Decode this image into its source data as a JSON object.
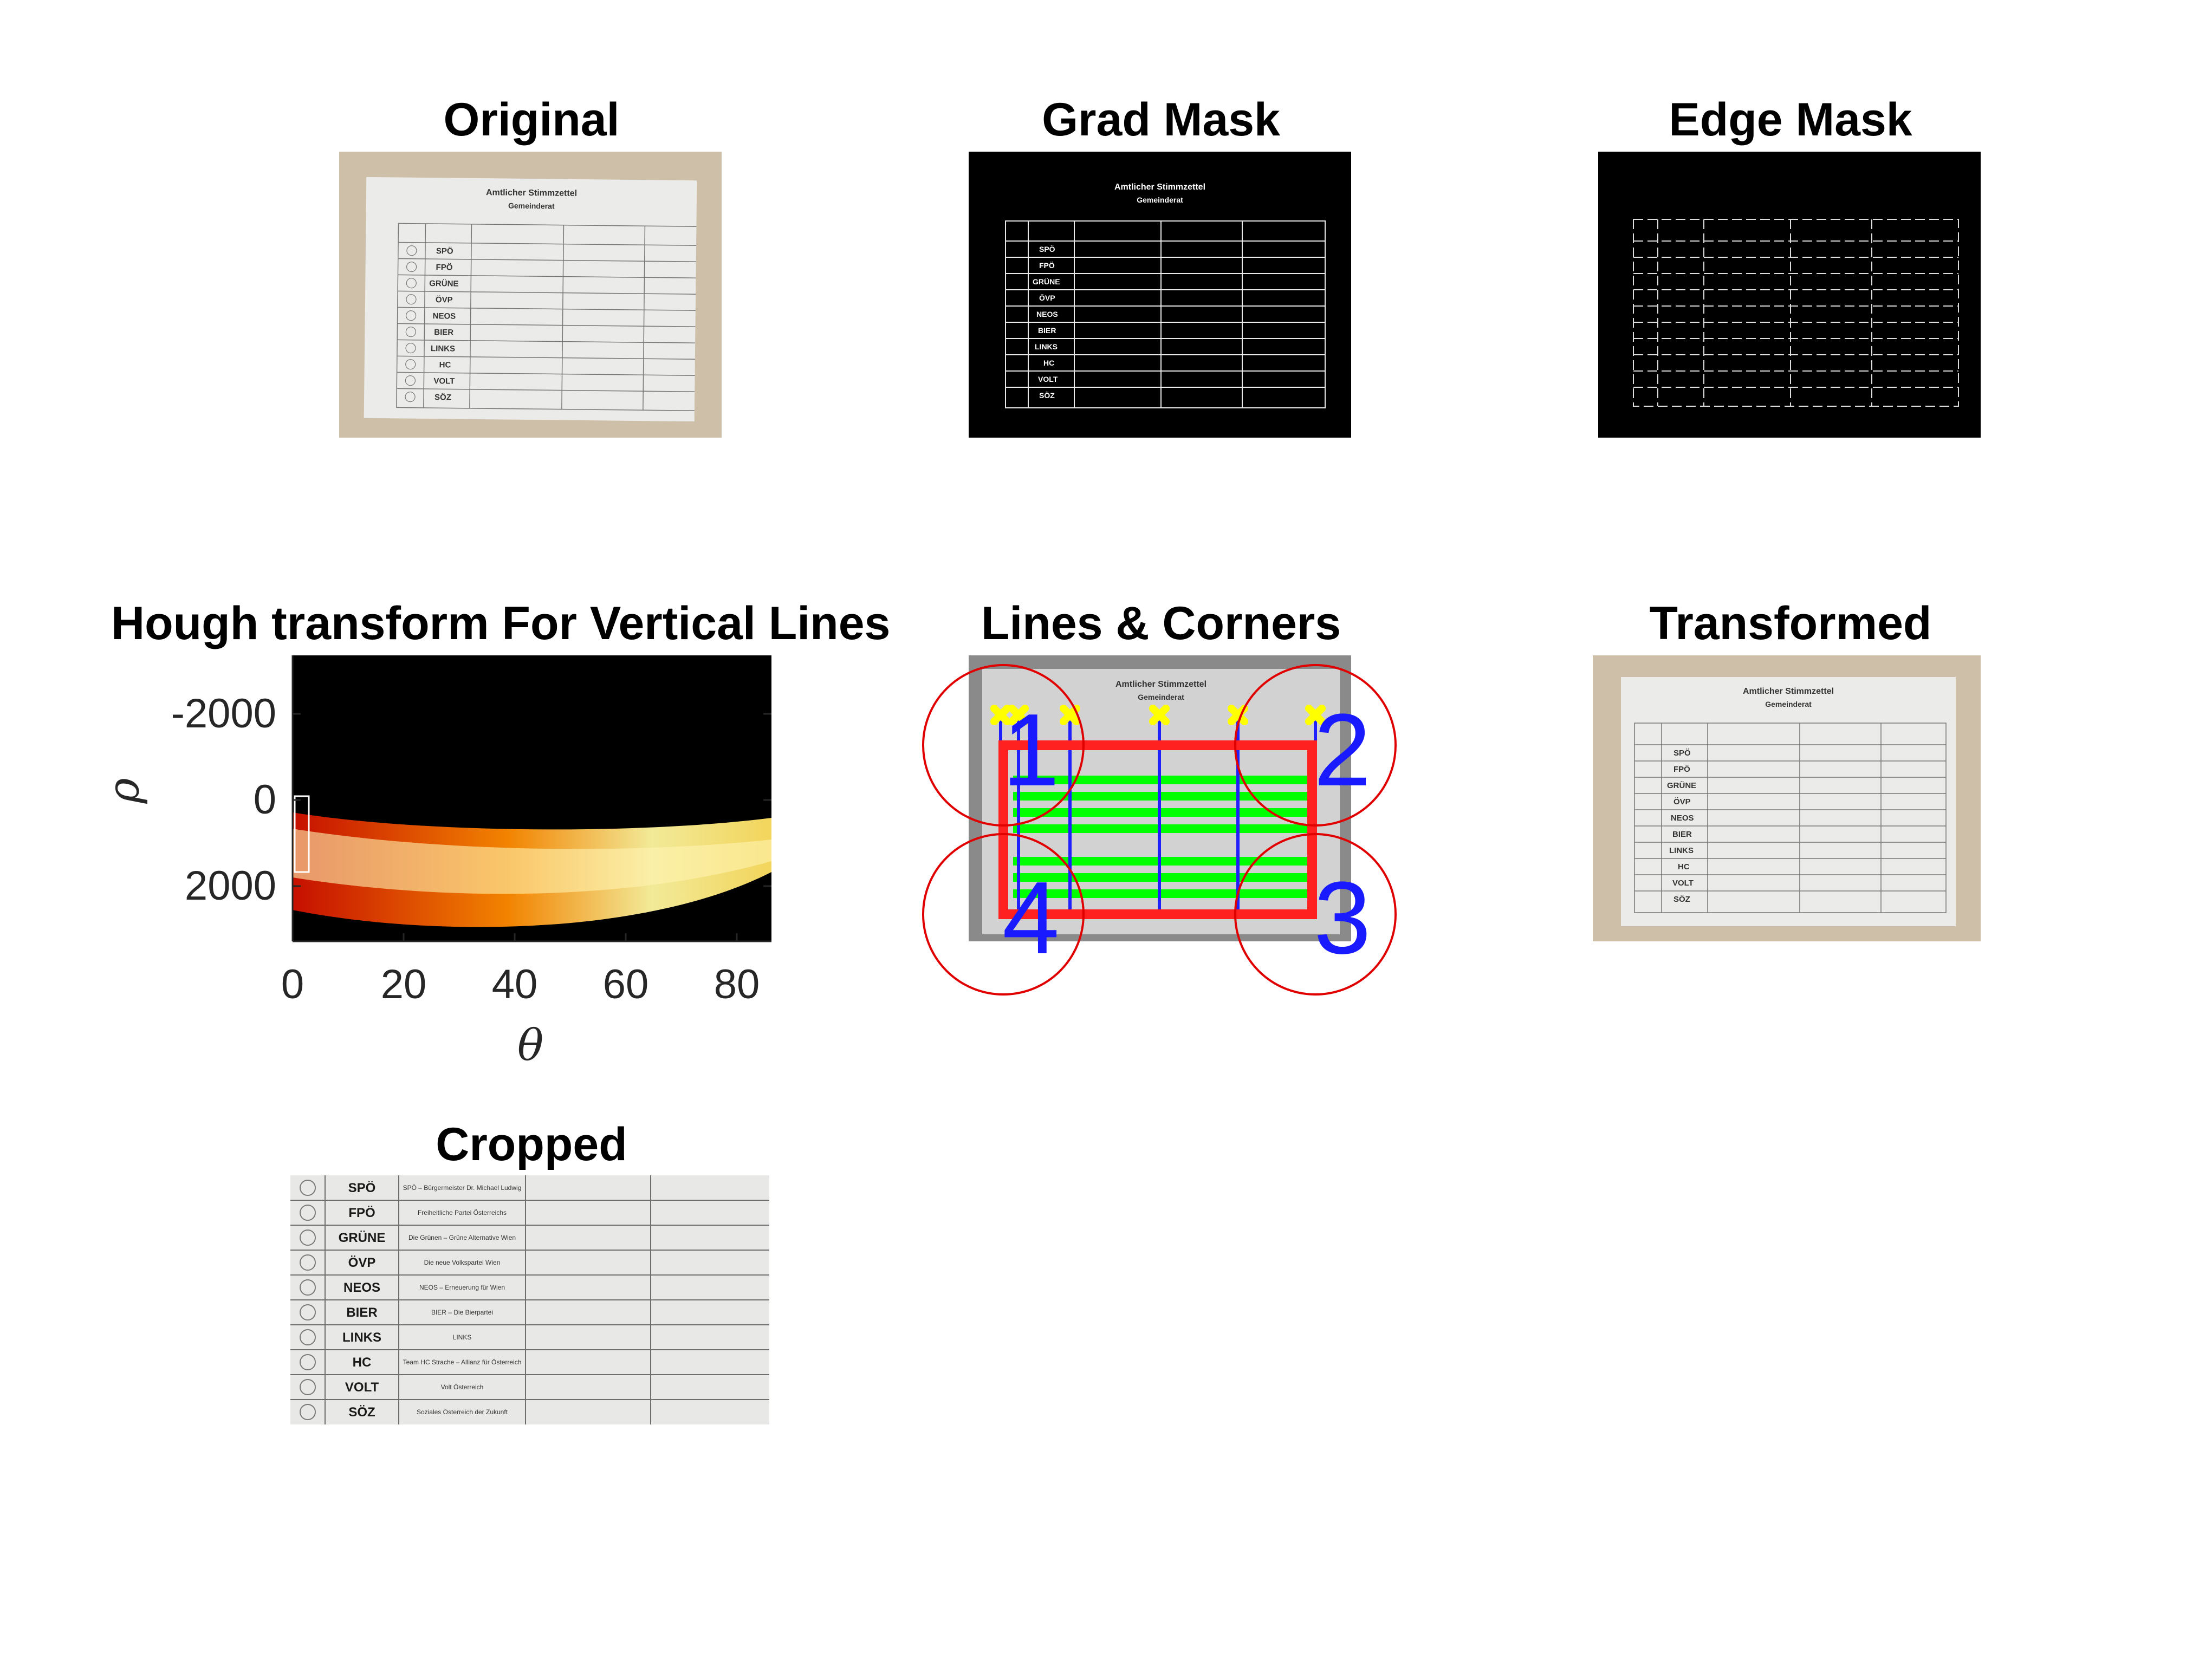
{
  "panels": {
    "original": {
      "title": "Original"
    },
    "grad_mask": {
      "title": "Grad Mask"
    },
    "edge_mask": {
      "title": "Edge Mask"
    },
    "hough": {
      "title": "Hough transform For Vertical Lines"
    },
    "lines_corners": {
      "title": "Lines & Corners"
    },
    "transformed": {
      "title": "Transformed"
    },
    "cropped": {
      "title": "Cropped"
    }
  },
  "ballot": {
    "heading": "Amtlicher Stimmzettel",
    "subheading": "Gemeinderat",
    "parties": [
      "SPÖ",
      "FPÖ",
      "GRÜNE",
      "ÖVP",
      "NEOS",
      "BIER",
      "LINKS",
      "HC",
      "VOLT",
      "SÖZ"
    ],
    "descriptions": [
      "SPÖ – Bürgermeister Dr. Michael Ludwig",
      "Freiheitliche Partei Österreichs",
      "Die Grünen – Grüne Alternative Wien",
      "Die neue Volkspartei Wien",
      "NEOS – Erneuerung für Wien",
      "BIER – Die Bierpartei",
      "LINKS",
      "Team HC Strache – Allianz für Österreich",
      "Volt Österreich",
      "Soziales Österreich der Zukunft"
    ]
  },
  "hough_axes": {
    "xlabel": "θ",
    "ylabel": "ρ",
    "xticks": [
      "0",
      "20",
      "40",
      "60",
      "80"
    ],
    "yticks": [
      "-2000",
      "0",
      "2000"
    ]
  },
  "corners": {
    "labels": [
      "1",
      "2",
      "3",
      "4"
    ]
  },
  "colors": {
    "corner_circle": "#e00000",
    "corner_label": "#1a1aff",
    "bounding_rect": "#ff2020",
    "green_lines": "#00ff00",
    "yellow_marks": "#ffff00",
    "blue_marks": "#2020ff"
  }
}
